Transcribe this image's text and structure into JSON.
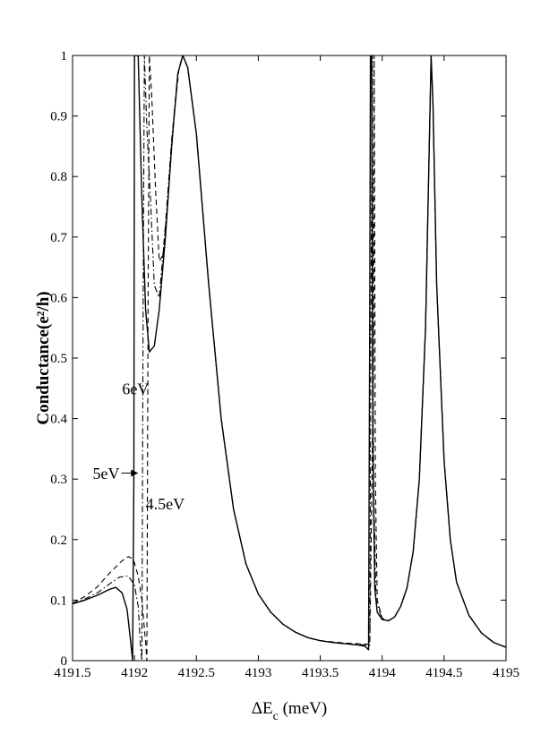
{
  "chart_data": {
    "type": "line",
    "xlabel": "ΔE",
    "xlabel_sub": "c",
    "xlabel_unit": " (meV)",
    "ylabel": "Conductance(e²/h)",
    "xlim": [
      4191.5,
      4195
    ],
    "ylim": [
      0,
      1
    ],
    "xticks": [
      "4191.5",
      "4192",
      "4192.5",
      "4193",
      "4193.5",
      "4194",
      "4194.5",
      "4195"
    ],
    "yticks": [
      "0",
      "0.1",
      "0.2",
      "0.3",
      "0.4",
      "0.5",
      "0.6",
      "0.7",
      "0.8",
      "0.9",
      "1"
    ],
    "grid": false,
    "annotations": [
      {
        "text": "6eV",
        "x": 4191.9,
        "y": 0.44
      },
      {
        "text": "5eV",
        "x": 4191.88,
        "y": 0.3,
        "arrow_to": [
          4192.03,
          0.31
        ]
      },
      {
        "text": "4.5eV",
        "x": 4192.09,
        "y": 0.25
      }
    ],
    "series": [
      {
        "style": "solid",
        "points": [
          [
            4191.5,
            0.094
          ],
          [
            4191.6,
            0.1
          ],
          [
            4191.7,
            0.108
          ],
          [
            4191.8,
            0.118
          ],
          [
            4191.85,
            0.121
          ],
          [
            4191.9,
            0.112
          ],
          [
            4191.94,
            0.085
          ],
          [
            4191.97,
            0.03
          ],
          [
            4191.985,
            0.0
          ],
          [
            4191.995,
            0.3
          ],
          [
            4192.0,
            1.0
          ],
          [
            4192.03,
            1.0
          ],
          [
            4192.06,
            0.76
          ],
          [
            4192.09,
            0.58
          ],
          [
            4192.12,
            0.51
          ],
          [
            4192.16,
            0.52
          ],
          [
            4192.2,
            0.58
          ],
          [
            4192.25,
            0.7
          ],
          [
            4192.3,
            0.85
          ],
          [
            4192.35,
            0.97
          ],
          [
            4192.39,
            1.0
          ],
          [
            4192.43,
            0.98
          ],
          [
            4192.5,
            0.87
          ],
          [
            4192.6,
            0.62
          ],
          [
            4192.7,
            0.4
          ],
          [
            4192.8,
            0.25
          ],
          [
            4192.9,
            0.16
          ],
          [
            4193.0,
            0.11
          ],
          [
            4193.1,
            0.08
          ],
          [
            4193.2,
            0.06
          ],
          [
            4193.3,
            0.047
          ],
          [
            4193.4,
            0.038
          ],
          [
            4193.5,
            0.033
          ],
          [
            4193.6,
            0.03
          ],
          [
            4193.7,
            0.028
          ],
          [
            4193.8,
            0.026
          ],
          [
            4193.86,
            0.024
          ],
          [
            4193.89,
            0.018
          ],
          [
            4193.9,
            0.6
          ],
          [
            4193.905,
            1.0
          ],
          [
            4193.915,
            1.0
          ],
          [
            4193.925,
            0.35
          ],
          [
            4193.94,
            0.12
          ],
          [
            4193.96,
            0.08
          ],
          [
            4194.0,
            0.068
          ],
          [
            4194.05,
            0.066
          ],
          [
            4194.1,
            0.072
          ],
          [
            4194.15,
            0.09
          ],
          [
            4194.2,
            0.12
          ],
          [
            4194.25,
            0.18
          ],
          [
            4194.3,
            0.3
          ],
          [
            4194.35,
            0.55
          ],
          [
            4194.38,
            0.85
          ],
          [
            4194.395,
            1.0
          ],
          [
            4194.41,
            0.92
          ],
          [
            4194.44,
            0.62
          ],
          [
            4194.5,
            0.33
          ],
          [
            4194.55,
            0.2
          ],
          [
            4194.6,
            0.13
          ],
          [
            4194.7,
            0.075
          ],
          [
            4194.8,
            0.046
          ],
          [
            4194.9,
            0.03
          ],
          [
            4195.0,
            0.022
          ]
        ]
      },
      {
        "style": "dashdot",
        "points": [
          [
            4191.5,
            0.094
          ],
          [
            4191.6,
            0.102
          ],
          [
            4191.7,
            0.112
          ],
          [
            4191.8,
            0.127
          ],
          [
            4191.88,
            0.138
          ],
          [
            4191.95,
            0.14
          ],
          [
            4192.0,
            0.125
          ],
          [
            4192.03,
            0.09
          ],
          [
            4192.05,
            0.02
          ],
          [
            4192.06,
            0.0
          ],
          [
            4192.07,
            0.6
          ],
          [
            4192.08,
            1.0
          ],
          [
            4192.1,
            0.88
          ],
          [
            4192.13,
            0.76
          ],
          [
            4192.16,
            0.62
          ],
          [
            4192.2,
            0.6
          ],
          [
            4192.25,
            0.72
          ],
          [
            4192.3,
            0.86
          ],
          [
            4192.35,
            0.97
          ],
          [
            4192.39,
            1.0
          ],
          [
            4192.43,
            0.98
          ],
          [
            4192.5,
            0.87
          ],
          [
            4192.6,
            0.62
          ],
          [
            4192.7,
            0.4
          ],
          [
            4192.8,
            0.25
          ],
          [
            4192.9,
            0.16
          ],
          [
            4193.0,
            0.11
          ],
          [
            4193.1,
            0.08
          ],
          [
            4193.2,
            0.06
          ],
          [
            4193.3,
            0.047
          ],
          [
            4193.4,
            0.038
          ],
          [
            4193.5,
            0.033
          ],
          [
            4193.6,
            0.03
          ],
          [
            4193.7,
            0.028
          ],
          [
            4193.8,
            0.027
          ],
          [
            4193.9,
            0.025
          ],
          [
            4193.91,
            0.6
          ],
          [
            4193.92,
            1.0
          ],
          [
            4193.93,
            0.3
          ],
          [
            4193.95,
            0.1
          ],
          [
            4194.0,
            0.068
          ],
          [
            4194.05,
            0.066
          ],
          [
            4194.1,
            0.072
          ],
          [
            4194.15,
            0.09
          ],
          [
            4194.2,
            0.12
          ],
          [
            4194.25,
            0.18
          ],
          [
            4194.3,
            0.3
          ],
          [
            4194.35,
            0.55
          ],
          [
            4194.38,
            0.85
          ],
          [
            4194.395,
            1.0
          ],
          [
            4194.41,
            0.92
          ],
          [
            4194.44,
            0.62
          ],
          [
            4194.5,
            0.33
          ],
          [
            4194.55,
            0.2
          ],
          [
            4194.6,
            0.13
          ],
          [
            4194.7,
            0.075
          ],
          [
            4194.8,
            0.046
          ],
          [
            4194.9,
            0.03
          ],
          [
            4195.0,
            0.022
          ]
        ]
      },
      {
        "style": "dashed",
        "points": [
          [
            4191.5,
            0.095
          ],
          [
            4191.6,
            0.106
          ],
          [
            4191.7,
            0.122
          ],
          [
            4191.8,
            0.145
          ],
          [
            4191.9,
            0.165
          ],
          [
            4191.95,
            0.172
          ],
          [
            4191.99,
            0.168
          ],
          [
            4192.03,
            0.14
          ],
          [
            4192.06,
            0.1
          ],
          [
            4192.09,
            0.03
          ],
          [
            4192.1,
            0.0
          ],
          [
            4192.11,
            0.6
          ],
          [
            4192.12,
            1.0
          ],
          [
            4192.14,
            0.93
          ],
          [
            4192.17,
            0.78
          ],
          [
            4192.2,
            0.66
          ],
          [
            4192.23,
            0.67
          ],
          [
            4192.27,
            0.76
          ],
          [
            4192.32,
            0.9
          ],
          [
            4192.36,
            0.98
          ],
          [
            4192.39,
            1.0
          ],
          [
            4192.43,
            0.98
          ],
          [
            4192.5,
            0.87
          ],
          [
            4192.6,
            0.62
          ],
          [
            4192.7,
            0.4
          ],
          [
            4192.8,
            0.25
          ],
          [
            4192.9,
            0.16
          ],
          [
            4193.0,
            0.11
          ],
          [
            4193.1,
            0.08
          ],
          [
            4193.2,
            0.06
          ],
          [
            4193.3,
            0.047
          ],
          [
            4193.4,
            0.038
          ],
          [
            4193.5,
            0.033
          ],
          [
            4193.6,
            0.031
          ],
          [
            4193.7,
            0.029
          ],
          [
            4193.8,
            0.028
          ],
          [
            4193.9,
            0.027
          ],
          [
            4193.93,
            0.5
          ],
          [
            4193.935,
            1.0
          ],
          [
            4193.945,
            0.3
          ],
          [
            4193.96,
            0.1
          ],
          [
            4194.0,
            0.07
          ],
          [
            4194.05,
            0.066
          ],
          [
            4194.1,
            0.072
          ],
          [
            4194.15,
            0.09
          ],
          [
            4194.2,
            0.12
          ],
          [
            4194.25,
            0.18
          ],
          [
            4194.3,
            0.3
          ],
          [
            4194.35,
            0.55
          ],
          [
            4194.38,
            0.85
          ],
          [
            4194.395,
            1.0
          ],
          [
            4194.41,
            0.92
          ],
          [
            4194.44,
            0.62
          ],
          [
            4194.5,
            0.33
          ],
          [
            4194.55,
            0.2
          ],
          [
            4194.6,
            0.13
          ],
          [
            4194.7,
            0.075
          ],
          [
            4194.8,
            0.046
          ],
          [
            4194.9,
            0.03
          ],
          [
            4195.0,
            0.022
          ]
        ]
      }
    ]
  }
}
